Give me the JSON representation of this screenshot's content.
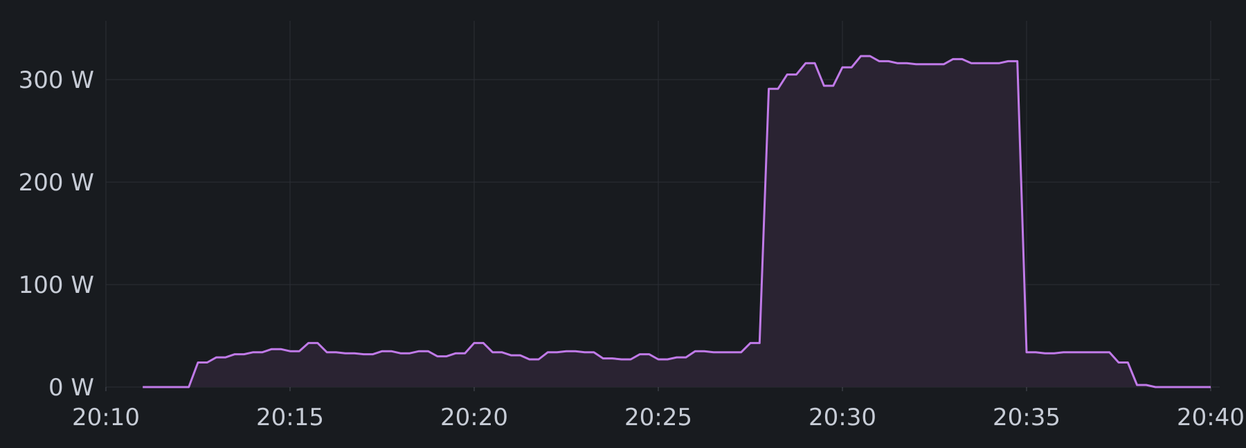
{
  "chart_data": {
    "type": "area",
    "title": "",
    "xlabel": "",
    "ylabel": "",
    "unit": "W",
    "ylim": [
      0,
      360
    ],
    "xlim": [
      "20:10",
      "20:40"
    ],
    "y_ticks": [
      "0 W",
      "100 W",
      "200 W",
      "300 W"
    ],
    "y_tick_values": [
      0,
      100,
      200,
      300
    ],
    "x_ticks": [
      "20:10",
      "20:15",
      "20:20",
      "20:25",
      "20:30",
      "20:35",
      "20:40"
    ],
    "grid": true,
    "legend": "none",
    "series": [
      {
        "color": "#c07ae8",
        "fill": "#2a2332",
        "x": [
          "20:11:00",
          "20:12:15",
          "20:12:30",
          "20:12:45",
          "20:13:00",
          "20:13:15",
          "20:13:30",
          "20:13:45",
          "20:14:00",
          "20:14:15",
          "20:14:30",
          "20:14:45",
          "20:15:00",
          "20:15:15",
          "20:15:30",
          "20:15:45",
          "20:16:00",
          "20:16:15",
          "20:16:30",
          "20:16:45",
          "20:17:00",
          "20:17:15",
          "20:17:30",
          "20:17:45",
          "20:18:00",
          "20:18:15",
          "20:18:30",
          "20:18:45",
          "20:19:00",
          "20:19:15",
          "20:19:30",
          "20:19:45",
          "20:20:00",
          "20:20:15",
          "20:20:30",
          "20:20:45",
          "20:21:00",
          "20:21:15",
          "20:21:30",
          "20:21:45",
          "20:22:00",
          "20:22:15",
          "20:22:30",
          "20:22:45",
          "20:23:00",
          "20:23:15",
          "20:23:30",
          "20:23:45",
          "20:24:00",
          "20:24:15",
          "20:24:30",
          "20:24:45",
          "20:25:00",
          "20:25:15",
          "20:25:30",
          "20:25:45",
          "20:26:00",
          "20:26:15",
          "20:26:30",
          "20:26:45",
          "20:27:00",
          "20:27:15",
          "20:27:30",
          "20:27:45",
          "20:28:00",
          "20:28:15",
          "20:28:30",
          "20:28:45",
          "20:29:00",
          "20:29:15",
          "20:29:30",
          "20:29:45",
          "20:30:00",
          "20:30:15",
          "20:30:30",
          "20:30:45",
          "20:31:00",
          "20:31:15",
          "20:31:30",
          "20:31:45",
          "20:32:00",
          "20:32:15",
          "20:32:30",
          "20:32:45",
          "20:33:00",
          "20:33:15",
          "20:33:30",
          "20:33:45",
          "20:34:00",
          "20:34:15",
          "20:34:30",
          "20:34:45",
          "20:35:00",
          "20:35:15",
          "20:35:30",
          "20:35:45",
          "20:36:00",
          "20:36:15",
          "20:36:30",
          "20:36:45",
          "20:37:00",
          "20:37:15",
          "20:37:30",
          "20:37:45",
          "20:38:00",
          "20:38:15",
          "20:38:30",
          "20:38:45",
          "20:39:00",
          "20:39:15",
          "20:39:30",
          "20:39:45",
          "20:40:00"
        ],
        "values": [
          0,
          0,
          24,
          24,
          29,
          29,
          32,
          32,
          34,
          34,
          37,
          37,
          35,
          35,
          43,
          43,
          34,
          34,
          33,
          33,
          32,
          32,
          35,
          35,
          33,
          33,
          35,
          35,
          30,
          30,
          33,
          33,
          43,
          43,
          34,
          34,
          31,
          31,
          27,
          27,
          34,
          34,
          35,
          35,
          34,
          34,
          28,
          28,
          27,
          27,
          32,
          32,
          27,
          27,
          29,
          29,
          35,
          35,
          34,
          34,
          34,
          34,
          43,
          43,
          291,
          291,
          305,
          305,
          316,
          316,
          294,
          294,
          312,
          312,
          323,
          323,
          318,
          318,
          316,
          316,
          315,
          315,
          315,
          315,
          320,
          320,
          316,
          316,
          316,
          316,
          318,
          318,
          34,
          34,
          33,
          33,
          34,
          34,
          34,
          34,
          34,
          34,
          24,
          24,
          2,
          2,
          0,
          0,
          0,
          0,
          0,
          0,
          0
        ]
      }
    ]
  }
}
